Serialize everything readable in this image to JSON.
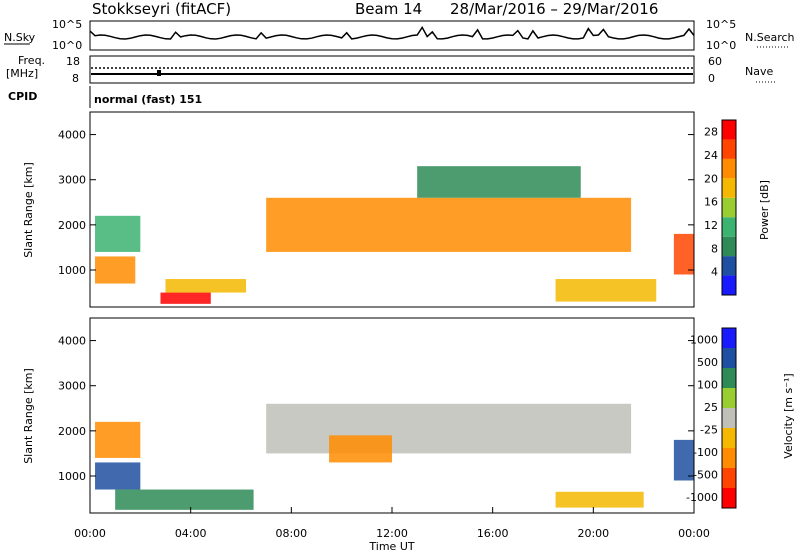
{
  "header": {
    "radar": "Stokkseyri (fitACF)",
    "beam": "Beam 14",
    "date_range": "28/Mar/2016 – 29/Mar/2016"
  },
  "noise_panel": {
    "left_label": "N.Sky",
    "right_label": "N.Search",
    "ticks_left": [
      "10^5",
      "10^0"
    ],
    "ticks_right": [
      "10^5",
      "10^0"
    ]
  },
  "freq_panel": {
    "label_line1": "Freq.",
    "label_line2": "[MHz]",
    "right_label": "Nave",
    "ticks_left": [
      "18",
      "8"
    ],
    "ticks_right": [
      "60",
      "0"
    ]
  },
  "cpid_panel": {
    "label": "CPID",
    "text": "normal (fast) 151"
  },
  "colors": {
    "power_scale": [
      "#1a1aff",
      "#1f4fa0",
      "#2e8b57",
      "#3cb371",
      "#9acd32",
      "#f5b800",
      "#ff8c00",
      "#ff4500",
      "#ff0000"
    ],
    "velocity_scale": [
      "#ff0000",
      "#ff4500",
      "#ff8c00",
      "#f5b800",
      "#c0c0b8",
      "#9acd32",
      "#2e8b57",
      "#1f4fa0",
      "#1a1aff"
    ]
  },
  "chart_data": [
    {
      "type": "heatmap",
      "panel": "power",
      "ylabel": "Slant Range [km]",
      "yticks": [
        "1000",
        "2000",
        "3000",
        "4000"
      ],
      "ylim": [
        180,
        4500
      ],
      "colorbar_label": "Power [dB]",
      "colorbar_ticks": [
        "4",
        "8",
        "12",
        "16",
        "20",
        "24",
        "28"
      ],
      "colorbar_range": [
        0,
        30
      ],
      "regions": [
        {
          "t0": 0.2,
          "t1": 1.8,
          "r0": 700,
          "r1": 1300,
          "value": 20
        },
        {
          "t0": 0.2,
          "t1": 2.0,
          "r0": 1400,
          "r1": 2200,
          "value": 12
        },
        {
          "t0": 2.8,
          "t1": 4.8,
          "r0": 250,
          "r1": 500,
          "value": 28
        },
        {
          "t0": 3.0,
          "t1": 6.2,
          "r0": 500,
          "r1": 800,
          "value": 18
        },
        {
          "t0": 7.0,
          "t1": 21.5,
          "r0": 1400,
          "r1": 2600,
          "value": 20
        },
        {
          "t0": 13.0,
          "t1": 19.5,
          "r0": 2600,
          "r1": 3300,
          "value": 8
        },
        {
          "t0": 18.5,
          "t1": 22.5,
          "r0": 300,
          "r1": 800,
          "value": 18
        },
        {
          "t0": 23.2,
          "t1": 24.0,
          "r0": 900,
          "r1": 1800,
          "value": 26
        }
      ]
    },
    {
      "type": "heatmap",
      "panel": "velocity",
      "ylabel": "Slant Range [km]",
      "yticks": [
        "1000",
        "2000",
        "3000",
        "4000"
      ],
      "ylim": [
        180,
        4500
      ],
      "xlabel": "Time UT",
      "xticks": [
        "00:00",
        "04:00",
        "08:00",
        "12:00",
        "16:00",
        "20:00",
        "00:00"
      ],
      "xlim": [
        0,
        24
      ],
      "colorbar_label": "Velocity [m s⁻¹]",
      "colorbar_ticks": [
        "1000",
        "500",
        "100",
        "25",
        "-25",
        "-100",
        "-500",
        "-1000"
      ],
      "regions": [
        {
          "t0": 0.2,
          "t1": 2.0,
          "r0": 700,
          "r1": 1300,
          "value": 600
        },
        {
          "t0": 0.2,
          "t1": 2.0,
          "r0": 1400,
          "r1": 2200,
          "value": -300
        },
        {
          "t0": 1.0,
          "t1": 6.5,
          "r0": 250,
          "r1": 700,
          "value": 150
        },
        {
          "t0": 7.0,
          "t1": 21.5,
          "r0": 1500,
          "r1": 2600,
          "value": 0
        },
        {
          "t0": 9.5,
          "t1": 12.0,
          "r0": 1300,
          "r1": 1900,
          "value": -200
        },
        {
          "t0": 18.5,
          "t1": 22.0,
          "r0": 300,
          "r1": 650,
          "value": -60
        },
        {
          "t0": 23.2,
          "t1": 24.0,
          "r0": 900,
          "r1": 1800,
          "value": 700
        }
      ]
    }
  ]
}
